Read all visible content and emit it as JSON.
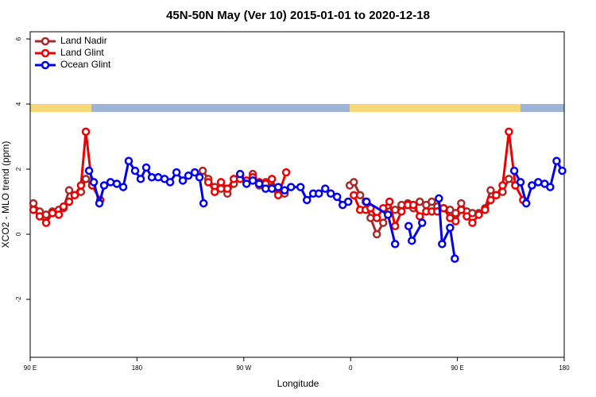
{
  "chart_data": {
    "type": "line",
    "title": "45N-50N May (Ver 10)   2015-01-01 to 2020-12-18",
    "xlabel": "Longitude",
    "ylabel": "XCO2 - MLO trend (ppm)",
    "xlim": [
      90,
      540
    ],
    "ylim": [
      -3.78,
      6.22
    ],
    "xticks": [
      {
        "value": 90,
        "label": "90 E"
      },
      180,
      {
        "value": 270,
        "label": "90 W"
      },
      {
        "value": 360,
        "label": "0"
      },
      {
        "value": 450,
        "label": "90 E"
      },
      {
        "value": 540,
        "label": "180"
      }
    ],
    "yticks": [
      -2,
      0,
      2,
      4,
      6
    ],
    "legend": "upper left",
    "series": [
      {
        "name": "Land Nadir",
        "color": "#a52a2a",
        "x": [
          92.7,
          98,
          103.4,
          108.7,
          114.1,
          118.1,
          122.8,
          127.5,
          132.8,
          136.9,
          142.2,
          190,
          235.4,
          240.1,
          245.5,
          250.8,
          256.2,
          261.6,
          266.9,
          272.3,
          277.6,
          283,
          288.4,
          293.7,
          299,
          304.4,
          330,
          359.3,
          362.7,
          368,
          372.7,
          376.8,
          382.1,
          387.5,
          392.8,
          397.5,
          402.9,
          408.2,
          412.9,
          418.3,
          423.7,
          428.4,
          433.1,
          438.4,
          443.8,
          448.5,
          453.2,
          457.9,
          462.6,
          468,
          473.3,
          478,
          482.7,
          488.1,
          493.4,
          498.8
        ],
        "values": [
          0.95,
          0.7,
          0.6,
          0.7,
          0.75,
          0.8,
          1.35,
          1.2,
          1.3,
          1.7,
          1.5,
          null,
          1.95,
          1.7,
          1.45,
          1.4,
          1.25,
          1.55,
          1.8,
          1.6,
          1.85,
          1.5,
          1.6,
          1.45,
          1.3,
          1.25,
          null,
          1.5,
          1.6,
          1.2,
          1.0,
          0.5,
          0.0,
          0.35,
          0.7,
          0.75,
          0.9,
          0.95,
          0.8,
          1.0,
          0.9,
          1.0,
          0.85,
          0.8,
          0.75,
          0.65,
          0.95,
          0.7,
          0.65,
          0.65,
          0.8,
          1.35,
          1.2,
          1.3,
          1.7,
          1.5
        ]
      },
      {
        "name": "Land Glint",
        "color": "#ee0000",
        "x": [
          92.7,
          98,
          103.4,
          108.7,
          114.1,
          118.1,
          122.8,
          127.5,
          132.8,
          136.9,
          142.2,
          149,
          190,
          240.1,
          245.5,
          250.8,
          256.2,
          261.6,
          266.9,
          272.3,
          277.6,
          283,
          288.4,
          293.7,
          299,
          305.7,
          330,
          362.7,
          368,
          372.7,
          376.8,
          382.1,
          387.5,
          392.8,
          397.5,
          402.9,
          408.2,
          412.9,
          418.3,
          423.7,
          428.4,
          433.1,
          438.4,
          443.8,
          448.5,
          453.2,
          457.9,
          462.6,
          468,
          473.3,
          478,
          482.7,
          488.1,
          493.4,
          498.8,
          505.4
        ],
        "values": [
          0.75,
          0.55,
          0.35,
          0.65,
          0.6,
          0.85,
          1.0,
          1.2,
          1.5,
          3.15,
          1.5,
          1.05,
          null,
          1.6,
          1.3,
          1.6,
          1.4,
          1.7,
          1.7,
          1.65,
          1.75,
          1.6,
          1.55,
          1.7,
          1.2,
          1.9,
          null,
          1.2,
          0.75,
          0.75,
          0.8,
          0.5,
          0.8,
          1.0,
          0.25,
          0.7,
          0.9,
          0.9,
          0.55,
          0.7,
          0.7,
          0.7,
          0.8,
          0.5,
          0.4,
          0.75,
          0.55,
          0.35,
          0.6,
          0.75,
          1.05,
          1.2,
          1.5,
          3.15,
          1.5,
          1.05
        ]
      },
      {
        "name": "Ocean Glint",
        "color": "#0000ee",
        "x": [
          139.6,
          143.6,
          148.3,
          152.3,
          157.7,
          163,
          168.4,
          173,
          178.4,
          183.1,
          187.8,
          192.5,
          197.9,
          203.2,
          207.9,
          213.3,
          218.6,
          223.3,
          228.7,
          232.7,
          236.1,
          250,
          266.9,
          272.3,
          277.6,
          283,
          288.4,
          293.7,
          299,
          304.4,
          309.8,
          317.8,
          323.2,
          328.5,
          333.2,
          338.6,
          343.3,
          348.6,
          353.3,
          358,
          365,
          373.4,
          391.5,
          397.5,
          402,
          408.9,
          411.6,
          420.3,
          428,
          434.4,
          437.1,
          443.8,
          447.8,
          470,
          497.9,
          503.2,
          508,
          512.8,
          518.1,
          523.5,
          528.2,
          533.6,
          538.3
        ],
        "values": [
          1.95,
          1.6,
          0.95,
          1.5,
          1.6,
          1.55,
          1.45,
          2.25,
          1.95,
          1.7,
          2.05,
          1.75,
          1.75,
          1.7,
          1.6,
          1.9,
          1.65,
          1.8,
          1.9,
          1.75,
          0.95,
          null,
          1.85,
          1.55,
          1.65,
          1.55,
          1.4,
          1.4,
          1.45,
          1.35,
          1.45,
          1.45,
          1.05,
          1.25,
          1.25,
          1.4,
          1.25,
          1.15,
          0.9,
          1.0,
          null,
          1.0,
          0.6,
          -0.3,
          null,
          0.25,
          -0.2,
          0.35,
          null,
          1.1,
          -0.3,
          0.2,
          -0.75,
          null,
          1.95,
          1.6,
          0.95,
          1.5,
          1.6,
          1.55,
          1.45,
          2.25,
          1.95
        ]
      }
    ]
  }
}
